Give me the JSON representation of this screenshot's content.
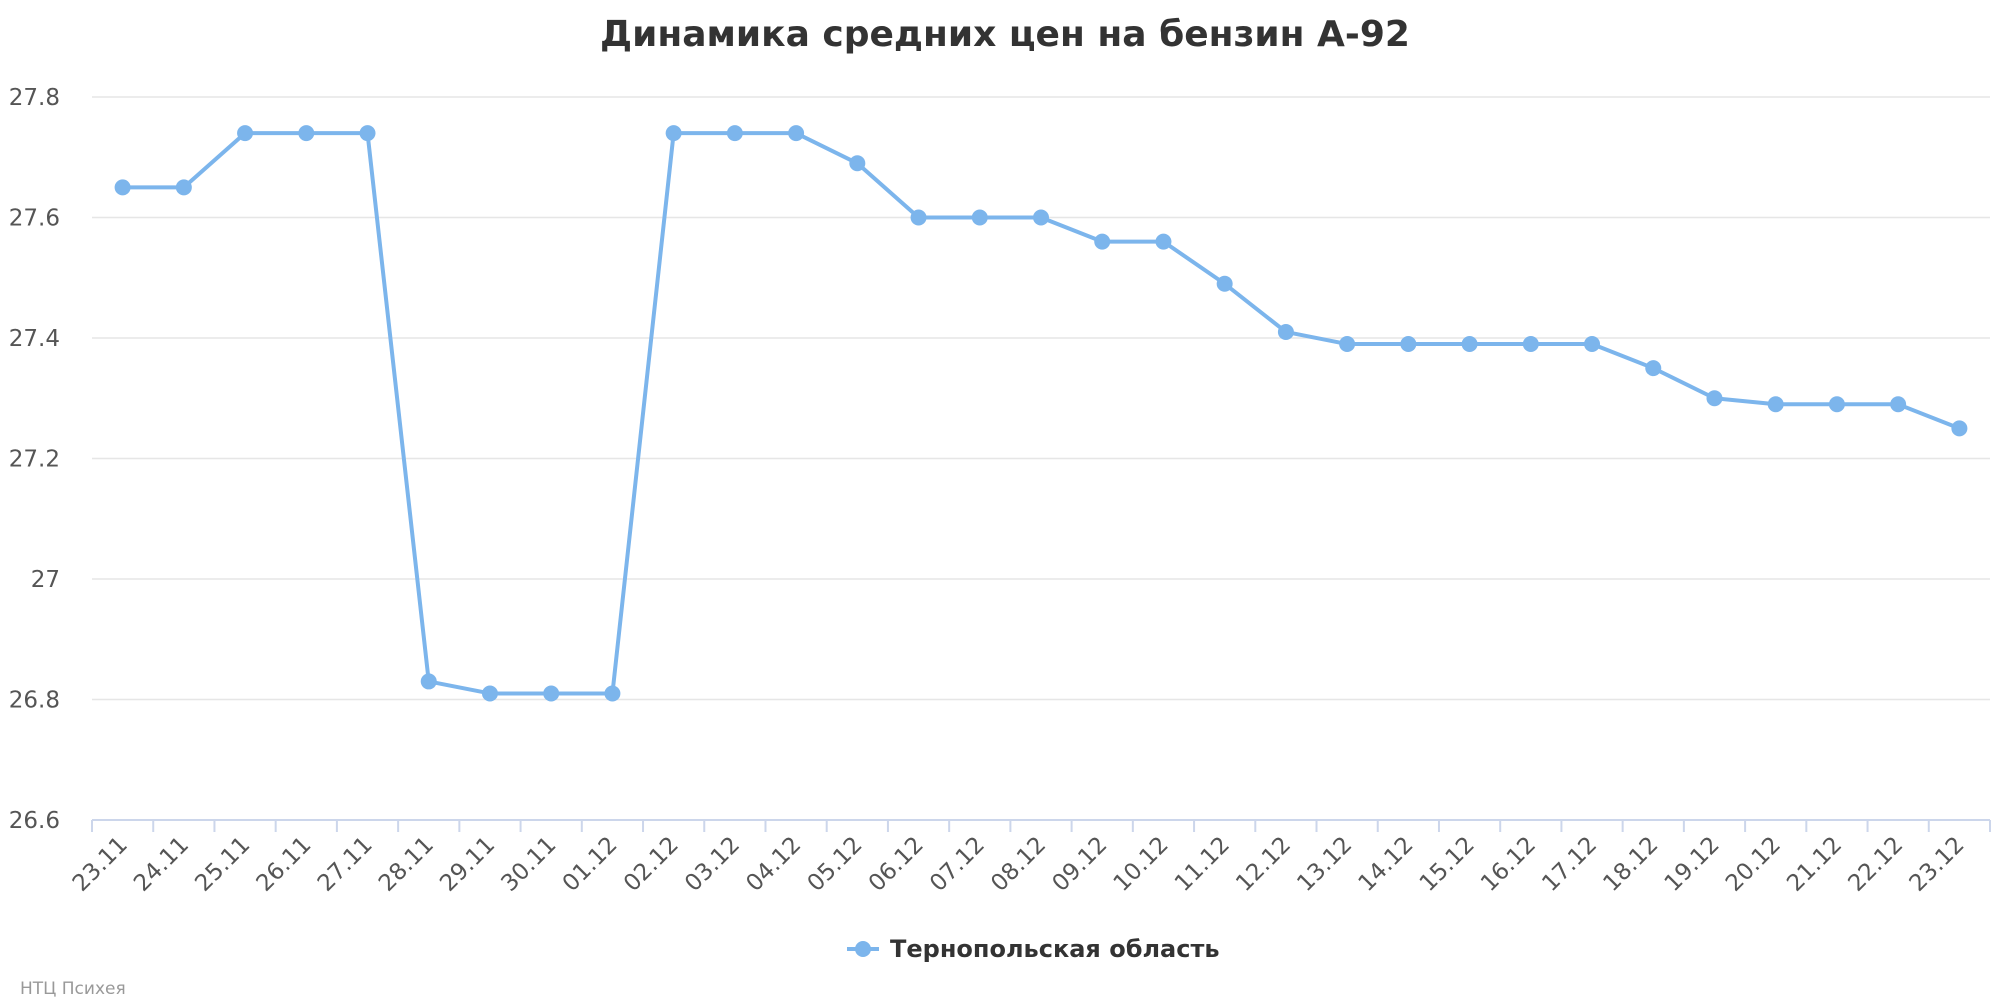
{
  "chart_data": {
    "type": "line",
    "title": "Динамика средних цен на бензин А-92",
    "xlabel": "",
    "ylabel": "",
    "categories": [
      "23.11",
      "24.11",
      "25.11",
      "26.11",
      "27.11",
      "28.11",
      "29.11",
      "30.11",
      "01.12",
      "02.12",
      "03.12",
      "04.12",
      "05.12",
      "06.12",
      "07.12",
      "08.12",
      "09.12",
      "10.12",
      "11.12",
      "12.12",
      "13.12",
      "14.12",
      "15.12",
      "16.12",
      "17.12",
      "18.12",
      "19.12",
      "20.12",
      "21.12",
      "22.12",
      "23.12"
    ],
    "yticks": [
      "26.6",
      "26.8",
      "27",
      "27.2",
      "27.4",
      "27.6",
      "27.8"
    ],
    "ylim": [
      26.6,
      27.8
    ],
    "grid": true,
    "legend_position": "bottom-center",
    "series": [
      {
        "name": "Тернопольская область",
        "color": "#7cb5ec",
        "values": [
          27.65,
          27.65,
          27.74,
          27.74,
          27.74,
          26.83,
          26.81,
          26.81,
          26.81,
          27.74,
          27.74,
          27.74,
          27.69,
          27.6,
          27.6,
          27.6,
          27.56,
          27.56,
          27.49,
          27.41,
          27.39,
          27.39,
          27.39,
          27.39,
          27.39,
          27.35,
          27.3,
          27.29,
          27.29,
          27.29,
          27.25
        ]
      }
    ]
  },
  "credits": "НТЦ Психея"
}
